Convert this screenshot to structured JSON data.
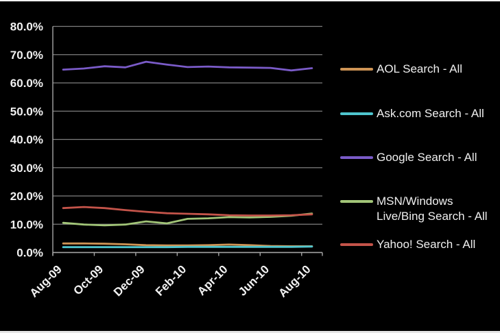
{
  "page": {
    "background": "#000000",
    "top_edge_color": "#f2f2f2",
    "bottom_edge_color": "#e6e6e6"
  },
  "chart_data": {
    "type": "line",
    "title": "",
    "xlabel": "",
    "ylabel": "",
    "ylim": [
      0,
      80
    ],
    "grid": true,
    "legend_position": "right",
    "background": "#000000",
    "gridline_color": "#7f7f7f",
    "axis_color": "#a6a6a6",
    "label_color": "#f2f2f2",
    "y_tick_labels": [
      "0.0%",
      "10.0%",
      "20.0%",
      "30.0%",
      "40.0%",
      "50.0%",
      "60.0%",
      "70.0%",
      "80.0%"
    ],
    "x_tick_labels": [
      "Aug-09",
      "Oct-09",
      "Dec-09",
      "Feb-10",
      "Apr-10",
      "Jun-10",
      "Aug-10"
    ],
    "categories": [
      "Aug-09",
      "Sep-09",
      "Oct-09",
      "Nov-09",
      "Dec-09",
      "Jan-10",
      "Feb-10",
      "Mar-10",
      "Apr-10",
      "May-10",
      "Jun-10",
      "Jul-10",
      "Aug-10"
    ],
    "series": [
      {
        "name": "AOL Search - All",
        "color": "#CE9455",
        "values": [
          3.2,
          3.2,
          3.1,
          2.9,
          2.6,
          2.5,
          2.5,
          2.6,
          2.8,
          2.6,
          2.3,
          2.2,
          2.2
        ]
      },
      {
        "name": "Ask.com Search - All",
        "color": "#4EC5CE",
        "values": [
          1.9,
          1.9,
          1.9,
          1.9,
          1.9,
          1.9,
          2.0,
          2.0,
          2.0,
          2.0,
          2.0,
          2.0,
          2.1
        ]
      },
      {
        "name": "Google Search - All",
        "color": "#7A5BC8",
        "values": [
          64.7,
          65.1,
          65.9,
          65.5,
          67.5,
          66.5,
          65.6,
          65.8,
          65.5,
          65.4,
          65.3,
          64.4,
          65.2
        ]
      },
      {
        "name": "MSN/Windows Live/Bing Search - All",
        "color": "#A2C578",
        "values": [
          10.5,
          9.9,
          9.6,
          9.9,
          11.0,
          10.3,
          11.9,
          12.1,
          12.5,
          12.4,
          12.6,
          13.0,
          13.8
        ]
      },
      {
        "name": "Yahoo! Search - All",
        "color": "#C4544A",
        "values": [
          15.7,
          16.1,
          15.7,
          15.0,
          14.4,
          13.9,
          13.7,
          13.5,
          13.2,
          13.1,
          13.1,
          13.2,
          13.5
        ]
      }
    ]
  },
  "legend": {
    "items": [
      {
        "label": "AOL Search - All",
        "color": "#CE9455"
      },
      {
        "label": "Ask.com Search - All",
        "color": "#4EC5CE"
      },
      {
        "label": "Google Search - All",
        "color": "#7A5BC8"
      },
      {
        "label": "MSN/Windows\nLive/Bing Search - All",
        "color": "#A2C578"
      },
      {
        "label": "Yahoo! Search - All",
        "color": "#C4544A"
      }
    ]
  }
}
